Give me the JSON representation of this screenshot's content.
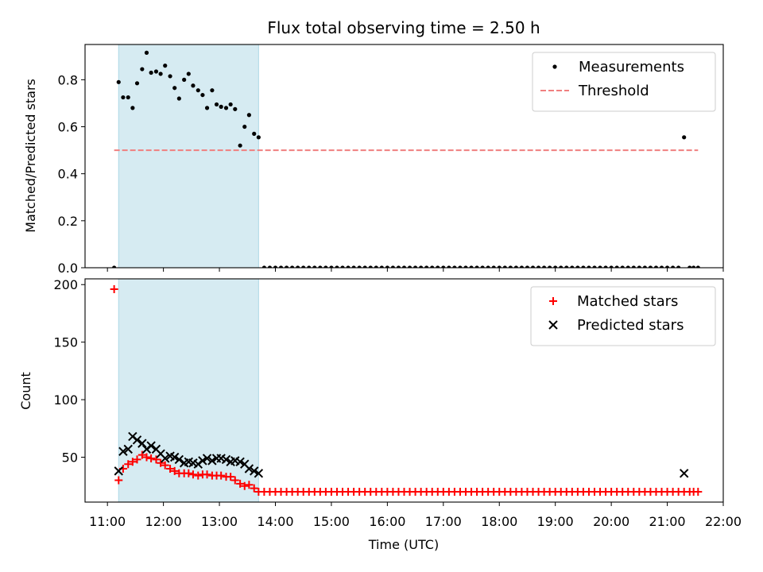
{
  "title": "Flux total observing time = 2.50 h",
  "chart_data": [
    {
      "type": "scatter",
      "ylabel": "Matched/Predicted stars",
      "xlabel": "",
      "xlim": [
        10.6,
        22.0
      ],
      "ylim": [
        0,
        0.95
      ],
      "yticks": [
        0.0,
        0.2,
        0.4,
        0.6,
        0.8
      ],
      "ytick_labels": [
        "0.0",
        "0.2",
        "0.4",
        "0.6",
        "0.8"
      ],
      "shaded_span": [
        11.2,
        13.7
      ],
      "legend_position": "upper right",
      "threshold": {
        "name": "Threshold",
        "y": 0.5,
        "x_range": [
          11.12,
          21.55
        ],
        "color": "#f07f7f",
        "style": "dashed"
      },
      "series": [
        {
          "name": "Measurements",
          "color": "#000000",
          "marker": "dot",
          "x": [
            11.12,
            11.2,
            11.28,
            11.37,
            11.45,
            11.53,
            11.62,
            11.7,
            11.78,
            11.87,
            11.95,
            12.03,
            12.12,
            12.2,
            12.28,
            12.37,
            12.45,
            12.53,
            12.62,
            12.7,
            12.78,
            12.87,
            12.95,
            13.03,
            13.12,
            13.2,
            13.28,
            13.37,
            13.45,
            13.53,
            13.62,
            13.7,
            13.8,
            13.9,
            14.0,
            14.1,
            14.2,
            14.3,
            14.4,
            14.5,
            14.6,
            14.7,
            14.8,
            14.9,
            15.0,
            15.1,
            15.2,
            15.3,
            15.4,
            15.5,
            15.6,
            15.7,
            15.8,
            15.9,
            16.0,
            16.1,
            16.2,
            16.3,
            16.4,
            16.5,
            16.6,
            16.7,
            16.8,
            16.9,
            17.0,
            17.1,
            17.2,
            17.3,
            17.4,
            17.5,
            17.6,
            17.7,
            17.8,
            17.9,
            18.0,
            18.1,
            18.2,
            18.3,
            18.4,
            18.5,
            18.6,
            18.7,
            18.8,
            18.9,
            19.0,
            19.1,
            19.2,
            19.3,
            19.4,
            19.5,
            19.6,
            19.7,
            19.8,
            19.9,
            20.0,
            20.1,
            20.2,
            20.3,
            20.4,
            20.5,
            20.6,
            20.7,
            20.8,
            20.9,
            21.0,
            21.1,
            21.2,
            21.3,
            21.4,
            21.47,
            21.55
          ],
          "y": [
            0.0,
            0.79,
            0.725,
            0.725,
            0.68,
            0.785,
            0.845,
            0.915,
            0.83,
            0.835,
            0.825,
            0.86,
            0.815,
            0.765,
            0.72,
            0.8,
            0.825,
            0.775,
            0.755,
            0.735,
            0.68,
            0.755,
            0.695,
            0.685,
            0.68,
            0.695,
            0.675,
            0.52,
            0.6,
            0.65,
            0.57,
            0.555,
            0.0,
            0.0,
            0.0,
            0.0,
            0.0,
            0.0,
            0.0,
            0.0,
            0.0,
            0.0,
            0.0,
            0.0,
            0.0,
            0.0,
            0.0,
            0.0,
            0.0,
            0.0,
            0.0,
            0.0,
            0.0,
            0.0,
            0.0,
            0.0,
            0.0,
            0.0,
            0.0,
            0.0,
            0.0,
            0.0,
            0.0,
            0.0,
            0.0,
            0.0,
            0.0,
            0.0,
            0.0,
            0.0,
            0.0,
            0.0,
            0.0,
            0.0,
            0.0,
            0.0,
            0.0,
            0.0,
            0.0,
            0.0,
            0.0,
            0.0,
            0.0,
            0.0,
            0.0,
            0.0,
            0.0,
            0.0,
            0.0,
            0.0,
            0.0,
            0.0,
            0.0,
            0.0,
            0.0,
            0.0,
            0.0,
            0.0,
            0.0,
            0.0,
            0.0,
            0.0,
            0.0,
            0.0,
            0.0,
            0.0,
            0.0,
            0.555,
            0.0,
            0.0,
            0.0
          ]
        }
      ]
    },
    {
      "type": "scatter",
      "ylabel": "Count",
      "xlabel": "Time (UTC)",
      "xlim": [
        10.6,
        22.0
      ],
      "ylim": [
        11,
        205
      ],
      "yticks": [
        50,
        100,
        150,
        200
      ],
      "ytick_labels": [
        "50",
        "100",
        "150",
        "200"
      ],
      "xticks": [
        11,
        12,
        13,
        14,
        15,
        16,
        17,
        18,
        19,
        20,
        21,
        22
      ],
      "xtick_labels": [
        "11:00",
        "12:00",
        "13:00",
        "14:00",
        "15:00",
        "16:00",
        "17:00",
        "18:00",
        "19:00",
        "20:00",
        "21:00",
        "22:00"
      ],
      "shaded_span": [
        11.2,
        13.7
      ],
      "legend_position": "upper right",
      "series": [
        {
          "name": "Matched stars",
          "color": "#ff0000",
          "marker": "plus",
          "x": [
            11.12,
            11.2,
            11.28,
            11.37,
            11.45,
            11.53,
            11.62,
            11.7,
            11.78,
            11.87,
            11.95,
            12.03,
            12.12,
            12.2,
            12.28,
            12.37,
            12.45,
            12.53,
            12.62,
            12.7,
            12.78,
            12.87,
            12.95,
            13.03,
            13.12,
            13.2,
            13.28,
            13.37,
            13.45,
            13.53,
            13.62,
            13.7,
            13.8,
            13.9,
            14.0,
            14.1,
            14.2,
            14.3,
            14.4,
            14.5,
            14.6,
            14.7,
            14.8,
            14.9,
            15.0,
            15.1,
            15.2,
            15.3,
            15.4,
            15.5,
            15.6,
            15.7,
            15.8,
            15.9,
            16.0,
            16.1,
            16.2,
            16.3,
            16.4,
            16.5,
            16.6,
            16.7,
            16.8,
            16.9,
            17.0,
            17.1,
            17.2,
            17.3,
            17.4,
            17.5,
            17.6,
            17.7,
            17.8,
            17.9,
            18.0,
            18.1,
            18.2,
            18.3,
            18.4,
            18.5,
            18.6,
            18.7,
            18.8,
            18.9,
            19.0,
            19.1,
            19.2,
            19.3,
            19.4,
            19.5,
            19.6,
            19.7,
            19.8,
            19.9,
            20.0,
            20.1,
            20.2,
            20.3,
            20.4,
            20.5,
            20.6,
            20.7,
            20.8,
            20.9,
            21.0,
            21.1,
            21.2,
            21.3,
            21.4,
            21.47,
            21.55
          ],
          "y": [
            196,
            30,
            40,
            44,
            46,
            48,
            52,
            50,
            49,
            48,
            45,
            43,
            40,
            38,
            36,
            36,
            36,
            35,
            34,
            35,
            35,
            34,
            34,
            34,
            33,
            33,
            30,
            27,
            25,
            26,
            23,
            20,
            20,
            20,
            20,
            20,
            20,
            20,
            20,
            20,
            20,
            20,
            20,
            20,
            20,
            20,
            20,
            20,
            20,
            20,
            20,
            20,
            20,
            20,
            20,
            20,
            20,
            20,
            20,
            20,
            20,
            20,
            20,
            20,
            20,
            20,
            20,
            20,
            20,
            20,
            20,
            20,
            20,
            20,
            20,
            20,
            20,
            20,
            20,
            20,
            20,
            20,
            20,
            20,
            20,
            20,
            20,
            20,
            20,
            20,
            20,
            20,
            20,
            20,
            20,
            20,
            20,
            20,
            20,
            20,
            20,
            20,
            20,
            20,
            20,
            20,
            20,
            20,
            20,
            20,
            20
          ]
        },
        {
          "name": "Predicted stars",
          "color": "#000000",
          "marker": "x",
          "x": [
            11.2,
            11.28,
            11.37,
            11.45,
            11.53,
            11.62,
            11.7,
            11.78,
            11.87,
            11.95,
            12.03,
            12.12,
            12.2,
            12.28,
            12.37,
            12.45,
            12.53,
            12.62,
            12.7,
            12.78,
            12.87,
            12.95,
            13.03,
            13.12,
            13.2,
            13.28,
            13.37,
            13.45,
            13.53,
            13.62,
            13.7,
            21.3
          ],
          "y": [
            38,
            55,
            57,
            68,
            65,
            62,
            57,
            60,
            57,
            53,
            49,
            51,
            50,
            48,
            45,
            46,
            45,
            44,
            47,
            49,
            47,
            49,
            49,
            48,
            46,
            47,
            46,
            44,
            40,
            38,
            36,
            36
          ]
        }
      ]
    }
  ]
}
